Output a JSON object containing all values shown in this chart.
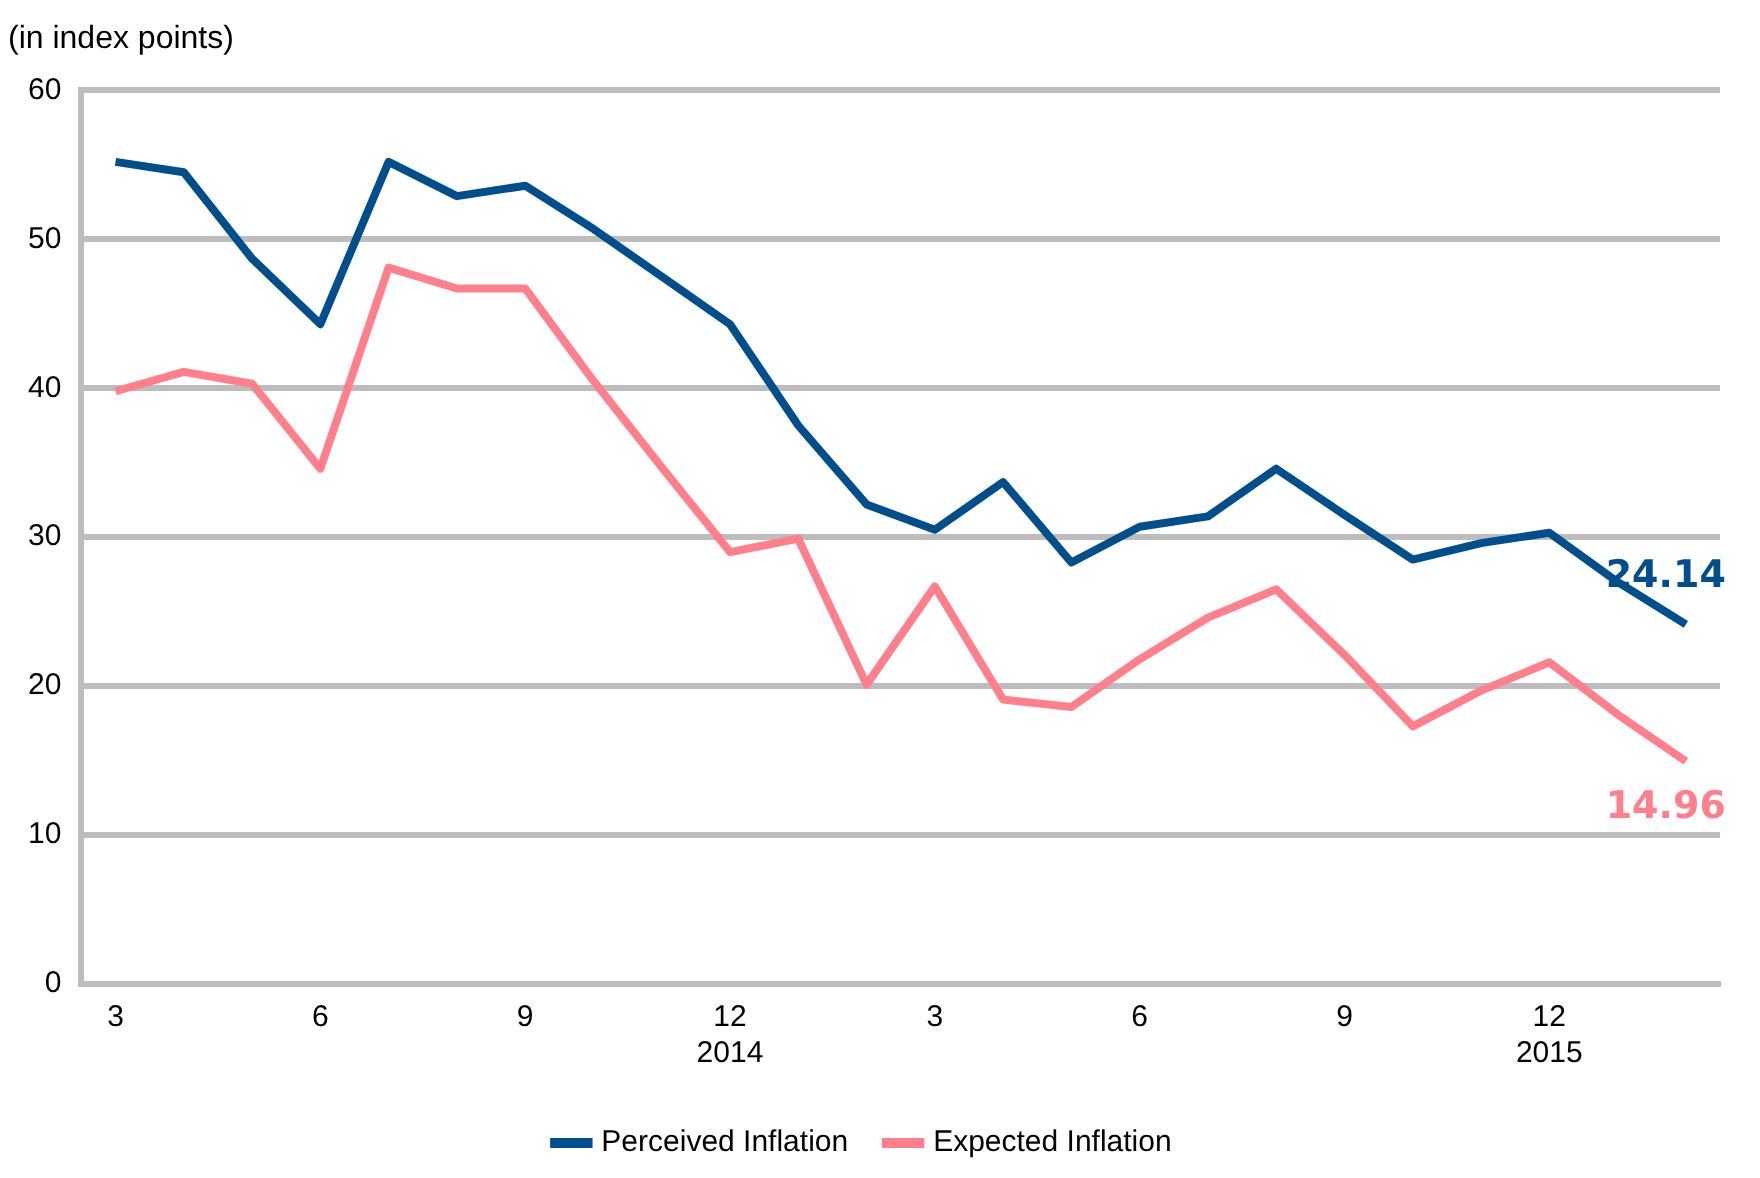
{
  "chart_data": {
    "type": "line",
    "ylabel": "(in index points)",
    "categories": [
      "3",
      null,
      null,
      "6",
      null,
      null,
      "9",
      null,
      null,
      "12\n2014",
      null,
      null,
      "3",
      null,
      null,
      "6",
      null,
      null,
      "9",
      null,
      null,
      "12\n2015",
      null,
      null
    ],
    "series": [
      {
        "name": "Perceived Inflation",
        "color": "#004f8c",
        "values": [
          55.2,
          54.5,
          48.7,
          44.3,
          55.2,
          52.9,
          53.6,
          50.7,
          47.5,
          44.3,
          37.5,
          32.2,
          30.5,
          33.7,
          28.3,
          30.7,
          31.4,
          34.6,
          31.5,
          28.5,
          29.6,
          30.3,
          27.0,
          24.14
        ],
        "value_labels": [
          null,
          null,
          null,
          null,
          null,
          null,
          null,
          null,
          null,
          null,
          null,
          null,
          null,
          null,
          null,
          null,
          null,
          null,
          null,
          null,
          null,
          null,
          null,
          "24.14"
        ]
      },
      {
        "name": "Expected Inflation",
        "color": "#ff7f8c",
        "values": [
          39.8,
          41.1,
          40.3,
          34.6,
          48.1,
          46.7,
          46.7,
          40.5,
          34.7,
          29.0,
          29.9,
          20.1,
          26.7,
          19.1,
          18.6,
          21.8,
          24.6,
          26.5,
          22.1,
          17.3,
          19.7,
          21.6,
          18.1,
          14.96
        ],
        "value_labels": [
          null,
          null,
          null,
          null,
          null,
          null,
          null,
          null,
          null,
          null,
          null,
          null,
          null,
          null,
          null,
          null,
          null,
          null,
          null,
          null,
          null,
          null,
          null,
          "14.96"
        ]
      }
    ],
    "ylim": [
      0,
      60
    ],
    "yticks": [
      0,
      10,
      20,
      30,
      40,
      50,
      60
    ],
    "grid": "y",
    "legend": "bottom",
    "marker": "none",
    "line_style": "solid"
  }
}
